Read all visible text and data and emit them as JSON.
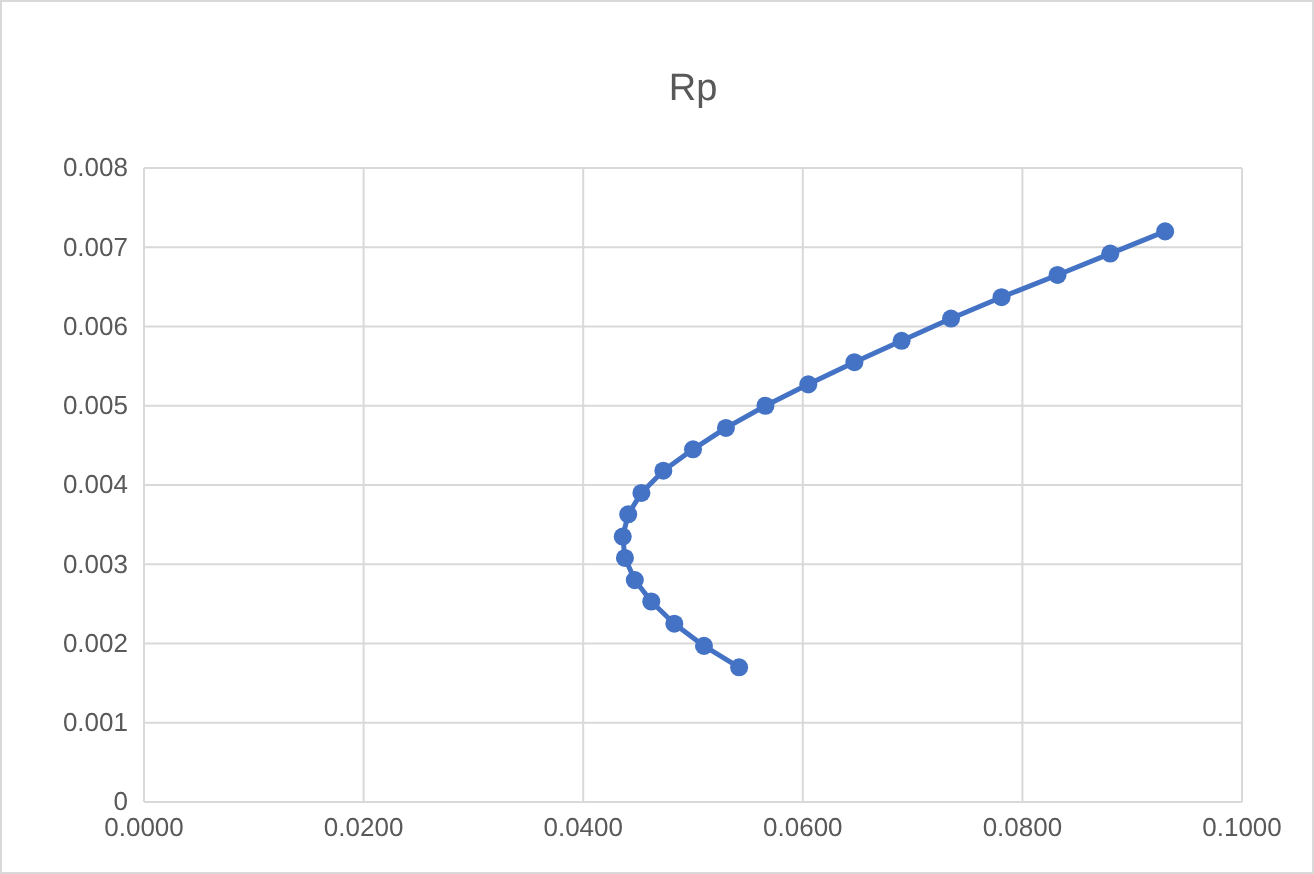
{
  "chart_data": {
    "type": "line",
    "title": "Rp",
    "x": [
      0.0542,
      0.051,
      0.0483,
      0.0462,
      0.0447,
      0.0438,
      0.0436,
      0.0441,
      0.0453,
      0.0473,
      0.05,
      0.053,
      0.0566,
      0.0605,
      0.0647,
      0.069,
      0.0735,
      0.0781,
      0.0832,
      0.088,
      0.093
    ],
    "series": [
      {
        "color": "#4472c4",
        "values": [
          0.0017,
          0.00197,
          0.00225,
          0.00253,
          0.0028,
          0.00308,
          0.00335,
          0.00363,
          0.0039,
          0.00418,
          0.00445,
          0.00472,
          0.005,
          0.00527,
          0.00555,
          0.00582,
          0.0061,
          0.00637,
          0.00665,
          0.00692,
          0.0072
        ]
      }
    ],
    "xlim": [
      0,
      0.1
    ],
    "xticks": [
      {
        "value": 0,
        "label": "0.0000"
      },
      {
        "value": 0.02,
        "label": "0.0200"
      },
      {
        "value": 0.04,
        "label": "0.0400"
      },
      {
        "value": 0.06,
        "label": "0.0600"
      },
      {
        "value": 0.08,
        "label": "0.0800"
      },
      {
        "value": 0.1,
        "label": "0.1000"
      }
    ],
    "ylim": [
      0,
      0.008
    ],
    "yticks": [
      0,
      0.001,
      0.002,
      0.003,
      0.004,
      0.005,
      0.006,
      0.007,
      0.008
    ],
    "grid": true,
    "marker": "circle",
    "line_style": "solid"
  }
}
